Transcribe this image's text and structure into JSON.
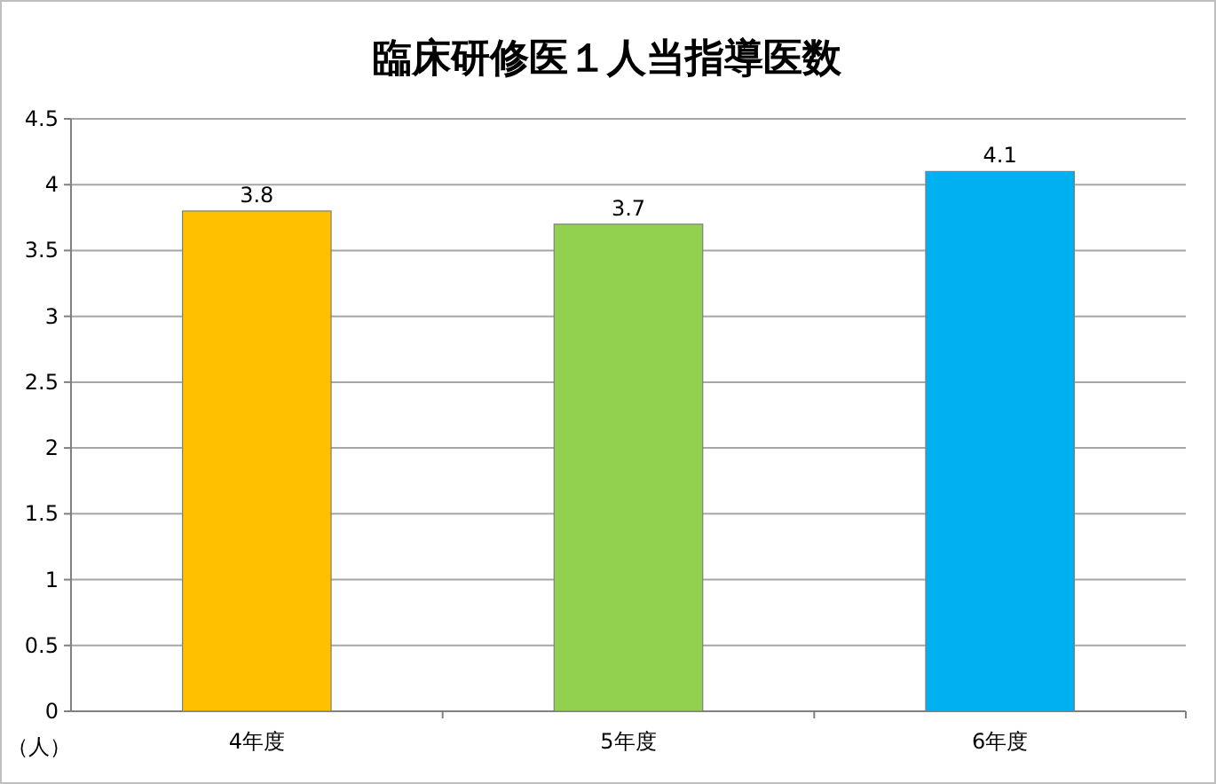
{
  "chart_data": {
    "type": "bar",
    "title": "臨床研修医１人当指導医数",
    "ylabel": "（人）",
    "categories": [
      "4年度",
      "5年度",
      "6年度"
    ],
    "values": [
      3.8,
      3.7,
      4.1
    ],
    "colors": [
      "#ffc000",
      "#92d050",
      "#00b0f0"
    ],
    "ylim": [
      0,
      4.5
    ],
    "yticks": [
      0,
      0.5,
      1,
      1.5,
      2,
      2.5,
      3,
      3.5,
      4,
      4.5
    ],
    "grid": "y",
    "data_labels": true
  }
}
